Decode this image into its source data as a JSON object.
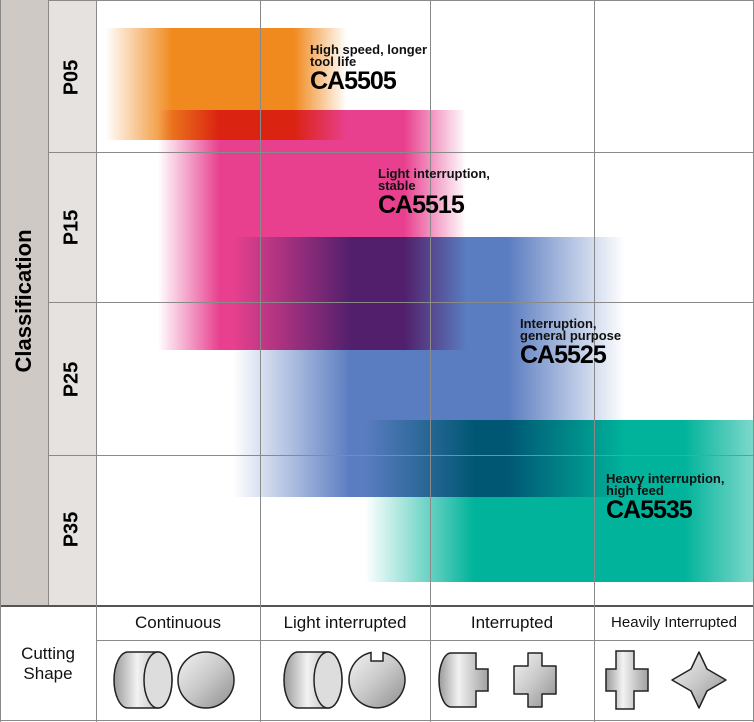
{
  "classification": "Classification",
  "rows": [
    "P05",
    "P15",
    "P25",
    "P35"
  ],
  "grades": [
    {
      "description_lines": [
        "High speed, longer",
        "tool life"
      ],
      "name": "CA5505"
    },
    {
      "description_lines": [
        "Light interruption,",
        "stable"
      ],
      "name": "CA5515"
    },
    {
      "description_lines": [
        "Interruption,",
        "general purpose"
      ],
      "name": "CA5525"
    },
    {
      "description_lines": [
        "Heavy interruption,",
        "high feed"
      ],
      "name": "CA5535"
    }
  ],
  "cutting_shape_lines": [
    "Cutting",
    "Shape"
  ],
  "columns": [
    "Continuous",
    "Light interrupted",
    "Interrupted",
    "Heavily Interrupted"
  ]
}
